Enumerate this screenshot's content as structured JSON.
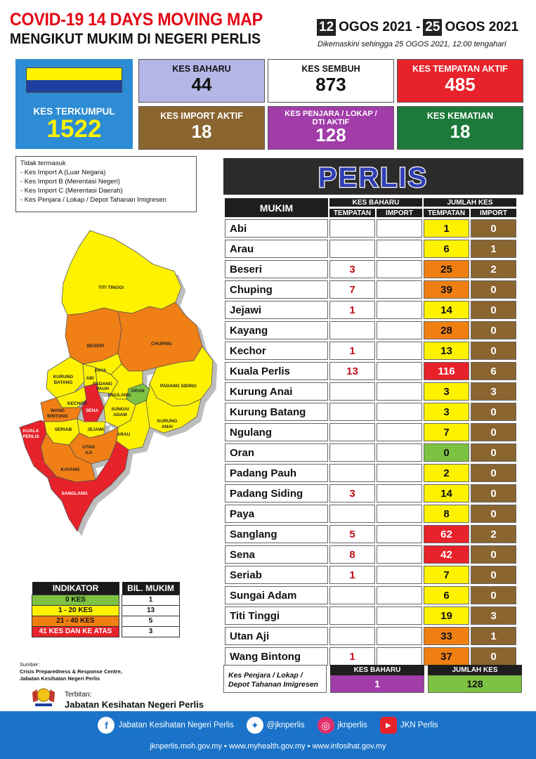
{
  "header": {
    "title_line1": "COVID-19 14 DAYS MOVING MAP",
    "title_line2": "MENGIKUT MUKIM DI NEGERI PERLIS",
    "date_start_day": "12",
    "date_start_rest": "OGOS 2021 -",
    "date_end_day": "25",
    "date_end_rest": "OGOS 2021",
    "updated": "Dikemaskini sehingga  25 OGOS  2021, 12:00 tengahari"
  },
  "stats": {
    "kes_terkumpul": {
      "label": "KES TERKUMPUL",
      "value": "1522"
    },
    "kes_baharu": {
      "label": "KES BAHARU",
      "value": "44"
    },
    "kes_sembuh": {
      "label": "KES SEMBUH",
      "value": "873"
    },
    "kes_tempatan_aktif": {
      "label": "KES TEMPATAN AKTIF",
      "value": "485"
    },
    "kes_import_aktif": {
      "label": "KES IMPORT AKTIF",
      "value": "18"
    },
    "kes_penjara": {
      "label_line1": "KES PENJARA / LOKAP /",
      "label_line2": "DTI AKTIF",
      "value": "128"
    },
    "kes_kematian": {
      "label": "KES KEMATIAN",
      "value": "18"
    }
  },
  "colors": {
    "blue": "#2d8cd4",
    "lavender": "#b4b6e6",
    "red": "#e8222b",
    "brown": "#8b6530",
    "purple": "#a13ca8",
    "green": "#1d7a3a",
    "zone_green": "#7dc242",
    "zone_yellow": "#fff200",
    "zone_orange": "#f07f12",
    "zone_red": "#e8222b"
  },
  "note": {
    "title": "Tidak termasuk",
    "items": [
      "- Kes Import A (Luar Negara)",
      "- Kes Import B (Merentasi Negeri)",
      "- Kes Import C (Merentasi Daerah)",
      "- Kes Penjara / Lokap / Depot Tahanan Imigresen"
    ]
  },
  "map_labels": {
    "titi_tinggi": "TITI TINGGI",
    "beseri": "BESERI",
    "chuping": "CHUPING",
    "kurung_batang_1": "KURUNG",
    "kurung_batang_2": "BATANG",
    "abi": "ABI",
    "paya": "PAYA",
    "padang_pauh_1": "PADANG",
    "padang_pauh_2": "PAUH",
    "oran": "ORAN",
    "padang_siding": "PADANG SIDING",
    "ngulang": "NGULANG",
    "wang_bintong_1": "WANG",
    "wang_bintong_2": "BINTONG",
    "kechor": "KECHOR",
    "sena": "SENA",
    "sungai_adam_1": "SUNGAI",
    "sungai_adam_2": "ADAM",
    "kurung_anai_1": "KURUNG",
    "kurung_anai_2": "ANAI",
    "kuala_perlis_1": "KUALA",
    "kuala_perlis_2": "PERLIS",
    "seriab": "SERIAB",
    "jejawi": "JEJAWI",
    "arau": "ARAU",
    "utan_aji_1": "UTAN",
    "utan_aji_2": "AJI",
    "kayang": "KAYANG",
    "sanglang": "SANGLANG"
  },
  "indicator": {
    "header_indikator": "INDIKATOR",
    "header_bil": "BIL. MUKIM",
    "rows": [
      {
        "label": "0 KES",
        "count": "1",
        "color": "#7dc242"
      },
      {
        "label": "1 - 20 KES",
        "count": "13",
        "color": "#fff200"
      },
      {
        "label": "21 - 40 KES",
        "count": "5",
        "color": "#f07f12"
      },
      {
        "label": "41 KES DAN KE ATAS",
        "count": "3",
        "color": "#e8222b"
      }
    ]
  },
  "source": {
    "label": "Sumber:",
    "line1": "Crisis Preparedness & Response Centre,",
    "line2": "Jabatan Kesihatan Negeri Perlis",
    "terbitan": "Terbitan:",
    "publisher": "Jabatan Kesihatan Negeri Perlis"
  },
  "table": {
    "banner": "PERLIS",
    "h_mukim": "MUKIM",
    "h_kes_baharu": "KES BAHARU",
    "h_jumlah_kes": "JUMLAH KES",
    "h_tempatan": "TEMPATAN",
    "h_import": "IMPORT",
    "rows": [
      {
        "mukim": "Abi",
        "baharu_t": "",
        "baharu_i": "",
        "jumlah_t": "1",
        "jumlah_i": "0",
        "zone": "#fff200"
      },
      {
        "mukim": "Arau",
        "baharu_t": "",
        "baharu_i": "",
        "jumlah_t": "6",
        "jumlah_i": "1",
        "zone": "#fff200"
      },
      {
        "mukim": "Beseri",
        "baharu_t": "3",
        "baharu_i": "",
        "jumlah_t": "25",
        "jumlah_i": "2",
        "zone": "#f07f12"
      },
      {
        "mukim": "Chuping",
        "baharu_t": "7",
        "baharu_i": "",
        "jumlah_t": "39",
        "jumlah_i": "0",
        "zone": "#f07f12"
      },
      {
        "mukim": "Jejawi",
        "baharu_t": "1",
        "baharu_i": "",
        "jumlah_t": "14",
        "jumlah_i": "0",
        "zone": "#fff200"
      },
      {
        "mukim": "Kayang",
        "baharu_t": "",
        "baharu_i": "",
        "jumlah_t": "28",
        "jumlah_i": "0",
        "zone": "#f07f12"
      },
      {
        "mukim": "Kechor",
        "baharu_t": "1",
        "baharu_i": "",
        "jumlah_t": "13",
        "jumlah_i": "0",
        "zone": "#fff200"
      },
      {
        "mukim": "Kuala Perlis",
        "baharu_t": "13",
        "baharu_i": "",
        "jumlah_t": "116",
        "jumlah_i": "6",
        "zone": "#e8222b"
      },
      {
        "mukim": "Kurung Anai",
        "baharu_t": "",
        "baharu_i": "",
        "jumlah_t": "3",
        "jumlah_i": "3",
        "zone": "#fff200"
      },
      {
        "mukim": "Kurung Batang",
        "baharu_t": "",
        "baharu_i": "",
        "jumlah_t": "3",
        "jumlah_i": "0",
        "zone": "#fff200"
      },
      {
        "mukim": "Ngulang",
        "baharu_t": "",
        "baharu_i": "",
        "jumlah_t": "7",
        "jumlah_i": "0",
        "zone": "#fff200"
      },
      {
        "mukim": "Oran",
        "baharu_t": "",
        "baharu_i": "",
        "jumlah_t": "0",
        "jumlah_i": "0",
        "zone": "#7dc242"
      },
      {
        "mukim": "Padang Pauh",
        "baharu_t": "",
        "baharu_i": "",
        "jumlah_t": "2",
        "jumlah_i": "0",
        "zone": "#fff200"
      },
      {
        "mukim": "Padang Siding",
        "baharu_t": "3",
        "baharu_i": "",
        "jumlah_t": "14",
        "jumlah_i": "0",
        "zone": "#fff200"
      },
      {
        "mukim": "Paya",
        "baharu_t": "",
        "baharu_i": "",
        "jumlah_t": "8",
        "jumlah_i": "0",
        "zone": "#fff200"
      },
      {
        "mukim": "Sanglang",
        "baharu_t": "5",
        "baharu_i": "",
        "jumlah_t": "62",
        "jumlah_i": "2",
        "zone": "#e8222b"
      },
      {
        "mukim": "Sena",
        "baharu_t": "8",
        "baharu_i": "",
        "jumlah_t": "42",
        "jumlah_i": "0",
        "zone": "#e8222b"
      },
      {
        "mukim": "Seriab",
        "baharu_t": "1",
        "baharu_i": "",
        "jumlah_t": "7",
        "jumlah_i": "0",
        "zone": "#fff200"
      },
      {
        "mukim": "Sungai Adam",
        "baharu_t": "",
        "baharu_i": "",
        "jumlah_t": "6",
        "jumlah_i": "0",
        "zone": "#fff200"
      },
      {
        "mukim": "Titi Tinggi",
        "baharu_t": "",
        "baharu_i": "",
        "jumlah_t": "19",
        "jumlah_i": "3",
        "zone": "#fff200"
      },
      {
        "mukim": "Utan Aji",
        "baharu_t": "",
        "baharu_i": "",
        "jumlah_t": "33",
        "jumlah_i": "1",
        "zone": "#f07f12"
      },
      {
        "mukim": "Wang Bintong",
        "baharu_t": "1",
        "baharu_i": "",
        "jumlah_t": "37",
        "jumlah_i": "0",
        "zone": "#f07f12"
      }
    ]
  },
  "penjara": {
    "label_line1": "Kes Penjara / Lokap /",
    "label_line2": "Depot Tahanan Imigresen",
    "kes_baharu_label": "KES BAHARU",
    "kes_baharu_value": "1",
    "jumlah_kes_label": "JUMLAH KES",
    "jumlah_kes_value": "128"
  },
  "footer": {
    "facebook": "Jabatan Kesihatan Negeri Perlis",
    "twitter": "@jknperlis",
    "instagram": "jknperlis",
    "youtube": "JKN Perlis",
    "facebook_icon": "facebook-icon",
    "twitter_icon": "twitter-icon",
    "instagram_icon": "instagram-icon",
    "youtube_icon": "youtube-icon",
    "websites": "jknperlis.moh.gov.my  ▪  www.myhealth.gov.my  ▪  www.infosihat.gov.my"
  }
}
